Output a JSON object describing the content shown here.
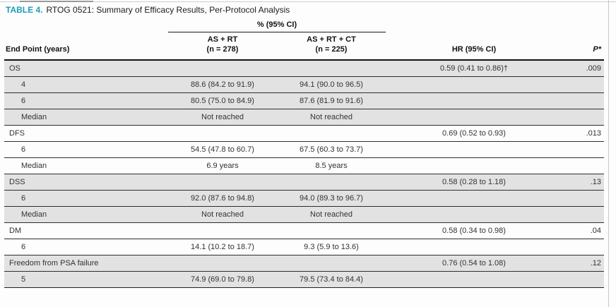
{
  "caption": {
    "label": "TABLE 4.",
    "title": "RTOG 0521: Summary of Efficacy Results, Per-Protocol Analysis"
  },
  "table": {
    "spanner": "% (95% CI)",
    "columns": {
      "endpoint": "End Point (years)",
      "arm1_line1": "AS + RT",
      "arm1_line2": "(n = 278)",
      "arm2_line1": "AS + RT + CT",
      "arm2_line2": "(n = 225)",
      "hr": "HR (95% CI)",
      "p": "P*"
    },
    "rows": [
      {
        "endpoint": "OS",
        "indent": false,
        "shaded": true,
        "arm1": "",
        "arm2": "",
        "hr": "0.59 (0.41 to 0.86)†",
        "p": ".009"
      },
      {
        "endpoint": "4",
        "indent": true,
        "shaded": true,
        "arm1": "88.6 (84.2 to 91.9)",
        "arm2": "94.1 (90.0 to 96.5)",
        "hr": "",
        "p": ""
      },
      {
        "endpoint": "6",
        "indent": true,
        "shaded": true,
        "arm1": "80.5 (75.0 to 84.9)",
        "arm2": "87.6 (81.9 to 91.6)",
        "hr": "",
        "p": ""
      },
      {
        "endpoint": "Median",
        "indent": true,
        "shaded": true,
        "arm1": "Not reached",
        "arm2": "Not reached",
        "hr": "",
        "p": ""
      },
      {
        "endpoint": "DFS",
        "indent": false,
        "shaded": false,
        "arm1": "",
        "arm2": "",
        "hr": "0.69 (0.52 to 0.93)",
        "p": ".013"
      },
      {
        "endpoint": "6",
        "indent": true,
        "shaded": false,
        "arm1": "54.5 (47.8 to 60.7)",
        "arm2": "67.5 (60.3 to 73.7)",
        "hr": "",
        "p": ""
      },
      {
        "endpoint": "Median",
        "indent": true,
        "shaded": false,
        "arm1": "6.9 years",
        "arm2": "8.5 years",
        "hr": "",
        "p": ""
      },
      {
        "endpoint": "DSS",
        "indent": false,
        "shaded": true,
        "arm1": "",
        "arm2": "",
        "hr": "0.58 (0.28 to 1.18)",
        "p": ".13"
      },
      {
        "endpoint": "6",
        "indent": true,
        "shaded": true,
        "arm1": "92.0 (87.6 to 94.8)",
        "arm2": "94.0 (89.3 to 96.7)",
        "hr": "",
        "p": ""
      },
      {
        "endpoint": "Median",
        "indent": true,
        "shaded": true,
        "arm1": "Not reached",
        "arm2": "Not reached",
        "hr": "",
        "p": ""
      },
      {
        "endpoint": "DM",
        "indent": false,
        "shaded": false,
        "arm1": "",
        "arm2": "",
        "hr": "0.58 (0.34 to 0.98)",
        "p": ".04"
      },
      {
        "endpoint": "6",
        "indent": true,
        "shaded": false,
        "arm1": "14.1 (10.2 to 18.7)",
        "arm2": "9.3 (5.9 to 13.6)",
        "hr": "",
        "p": ""
      },
      {
        "endpoint": "Freedom from PSA failure",
        "indent": false,
        "shaded": true,
        "arm1": "",
        "arm2": "",
        "hr": "0.76 (0.54 to 1.08)",
        "p": ".12"
      },
      {
        "endpoint": "5",
        "indent": true,
        "shaded": true,
        "arm1": "74.9 (69.0 to 79.8)",
        "arm2": "79.5 (73.4 to 84.4)",
        "hr": "",
        "p": ""
      }
    ]
  },
  "colors": {
    "accent_teal": "#1e9eba",
    "row_shade": "#e2e2e2",
    "rule_dark": "#1c1c1c"
  }
}
